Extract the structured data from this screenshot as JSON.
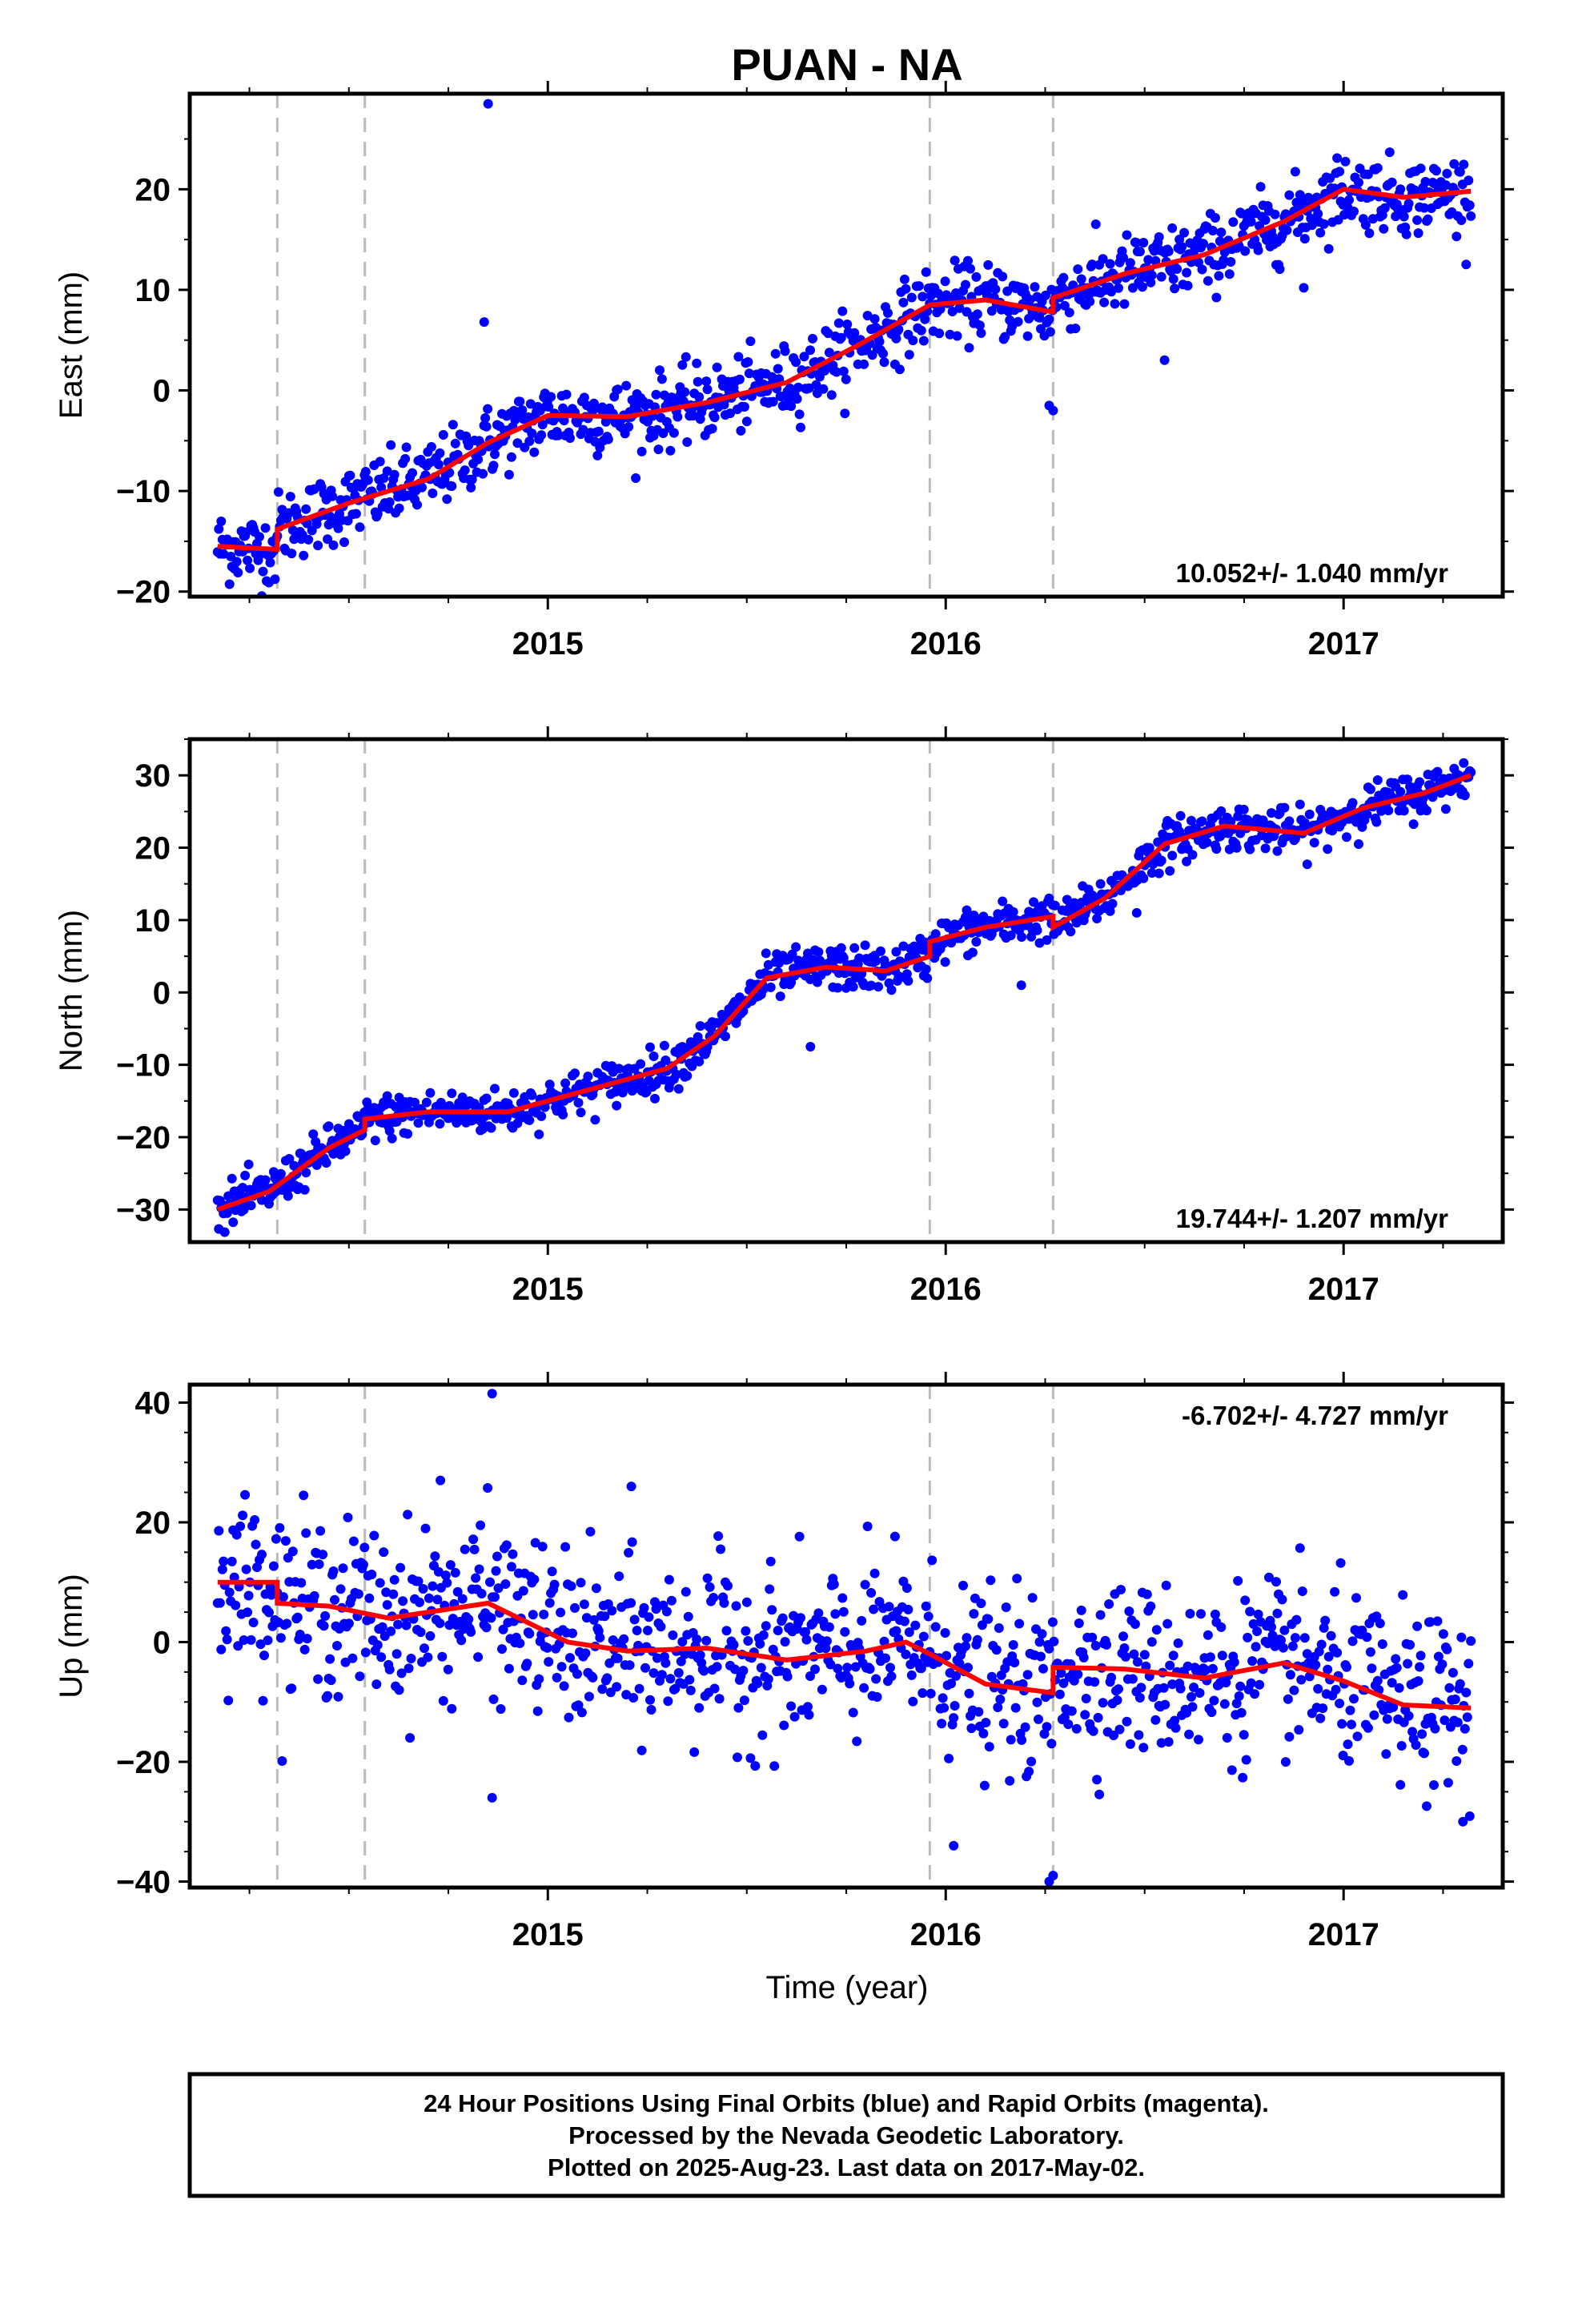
{
  "title": "PUAN - NA",
  "xlabel": "Time (year)",
  "footer": {
    "line1": "24 Hour Positions Using Final Orbits (blue) and Rapid Orbits (magenta).",
    "line2": "Processed by the Nevada Geodetic Laboratory.",
    "line3": "Plotted on 2025-Aug-23. Last data on 2017-May-02."
  },
  "colors": {
    "points": "#0000ff",
    "model": "#ff0000",
    "discontinuity": "#bbbbbb",
    "frame": "#000000"
  },
  "chart_data": [
    {
      "type": "scatter",
      "ylabel": "East (mm)",
      "rate_label": "10.052+/- 1.040 mm/yr",
      "rate_position": "bottom-right",
      "xlim": [
        2014.1,
        2017.4
      ],
      "ylim": [
        -20.5,
        29.5
      ],
      "yticks": [
        -20,
        -10,
        0,
        10,
        20
      ],
      "xticks": [
        2015,
        2016,
        2017
      ],
      "discontinuities": [
        2014.32,
        2014.54,
        2015.96,
        2016.27
      ],
      "model": {
        "x": [
          2014.17,
          2014.32,
          2014.32,
          2014.5,
          2014.7,
          2014.85,
          2015.0,
          2015.2,
          2015.4,
          2015.6,
          2015.78,
          2015.96,
          2016.1,
          2016.27,
          2016.27,
          2016.45,
          2016.65,
          2016.85,
          2017.0,
          2017.15,
          2017.32
        ],
        "y": [
          -15.5,
          -15.8,
          -13.8,
          -11.2,
          -8.8,
          -5.2,
          -2.5,
          -2.6,
          -1.2,
          0.8,
          4.5,
          8.5,
          9.0,
          7.8,
          9.2,
          11.6,
          13.5,
          16.8,
          20.0,
          19.2,
          19.8
        ]
      },
      "points": {
        "sigma": 1.8,
        "outliers": [
          [
            2014.85,
            28.5
          ],
          [
            2014.84,
            6.8
          ],
          [
            2016.26,
            -1.5
          ],
          [
            2016.27,
            -2.0
          ],
          [
            2016.9,
            10.2
          ],
          [
            2016.55,
            3.0
          ]
        ]
      }
    },
    {
      "type": "scatter",
      "ylabel": "North (mm)",
      "rate_label": "19.744+/- 1.207 mm/yr",
      "rate_position": "bottom-right",
      "xlim": [
        2014.1,
        2017.4
      ],
      "ylim": [
        -34.5,
        35.0
      ],
      "yticks": [
        -30,
        -20,
        -10,
        0,
        10,
        20,
        30
      ],
      "xticks": [
        2015,
        2016,
        2017
      ],
      "discontinuities": [
        2014.32,
        2014.54,
        2015.96,
        2016.27
      ],
      "model": {
        "x": [
          2014.17,
          2014.3,
          2014.45,
          2014.54,
          2014.54,
          2014.7,
          2014.9,
          2015.1,
          2015.3,
          2015.42,
          2015.55,
          2015.7,
          2015.85,
          2015.96,
          2015.96,
          2016.1,
          2016.27,
          2016.27,
          2016.4,
          2016.55,
          2016.7,
          2016.9,
          2017.05,
          2017.2,
          2017.32
        ],
        "y": [
          -30.0,
          -27.5,
          -21.5,
          -19.0,
          -17.5,
          -16.5,
          -16.5,
          -13.5,
          -10.5,
          -6.0,
          2.0,
          3.5,
          3.0,
          5.0,
          7.0,
          9.0,
          10.5,
          9.0,
          13.0,
          20.5,
          23.0,
          22.0,
          25.5,
          27.5,
          30.0
        ]
      },
      "points": {
        "sigma": 1.5,
        "outliers": [
          [
            2016.19,
            1.0
          ],
          [
            2015.66,
            -7.5
          ],
          [
            2016.48,
            11.0
          ]
        ]
      }
    },
    {
      "type": "scatter",
      "ylabel": "Up (mm)",
      "rate_label": "-6.702+/- 4.727 mm/yr",
      "rate_position": "top-right",
      "xlim": [
        2014.1,
        2017.4
      ],
      "ylim": [
        -41.0,
        43.0
      ],
      "yticks": [
        -40,
        -20,
        0,
        20,
        40
      ],
      "xticks": [
        2015,
        2016,
        2017
      ],
      "discontinuities": [
        2014.32,
        2014.54,
        2015.96,
        2016.27
      ],
      "model": {
        "x": [
          2014.17,
          2014.32,
          2014.32,
          2014.45,
          2014.6,
          2014.85,
          2015.05,
          2015.2,
          2015.4,
          2015.6,
          2015.8,
          2015.9,
          2015.96,
          2016.1,
          2016.27,
          2016.27,
          2016.45,
          2016.65,
          2016.85,
          2017.0,
          2017.15,
          2017.32
        ],
        "y": [
          10.0,
          10.0,
          6.5,
          6.0,
          4.0,
          6.5,
          0.0,
          -1.5,
          -1.0,
          -3.0,
          -1.5,
          0.0,
          -2.0,
          -7.0,
          -8.5,
          -4.2,
          -4.5,
          -6.0,
          -3.5,
          -6.5,
          -10.5,
          -11.0
        ]
      },
      "points": {
        "sigma": 7.0,
        "outliers": [
          [
            2014.86,
            41.5
          ],
          [
            2014.86,
            -26.0
          ],
          [
            2015.21,
            26.0
          ],
          [
            2014.73,
            27.0
          ],
          [
            2016.26,
            -40.0
          ],
          [
            2016.27,
            -39.0
          ],
          [
            2016.02,
            -34.0
          ],
          [
            2017.3,
            -30.0
          ]
        ]
      }
    }
  ]
}
